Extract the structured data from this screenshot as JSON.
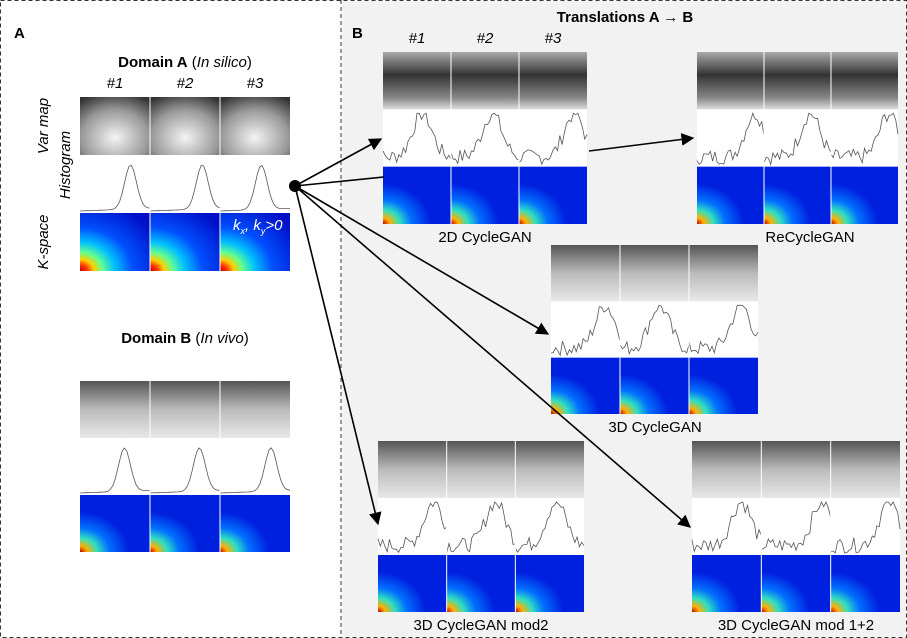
{
  "panel_a": {
    "label": "A",
    "domain_a": {
      "heading": [
        "Domain A",
        "(",
        "In silico",
        ")"
      ],
      "columns": [
        "#1",
        "#2",
        "#3"
      ],
      "row_labels": [
        "Var map",
        "Histogram",
        "K-space"
      ],
      "kspace_note": [
        "k",
        "x",
        ", k",
        "y",
        ">0"
      ]
    },
    "domain_b": {
      "heading": [
        "Domain B",
        "(",
        "In vivo",
        ")"
      ]
    }
  },
  "panel_b": {
    "label": "B",
    "title": "Translations A → B",
    "columns": [
      "#1",
      "#2",
      "#3"
    ],
    "methods": [
      "2D CycleGAN",
      "ReCycleGAN",
      "3D CycleGAN",
      "3D CycleGAN mod2",
      "3D CycleGAN mod 1+2"
    ]
  }
}
